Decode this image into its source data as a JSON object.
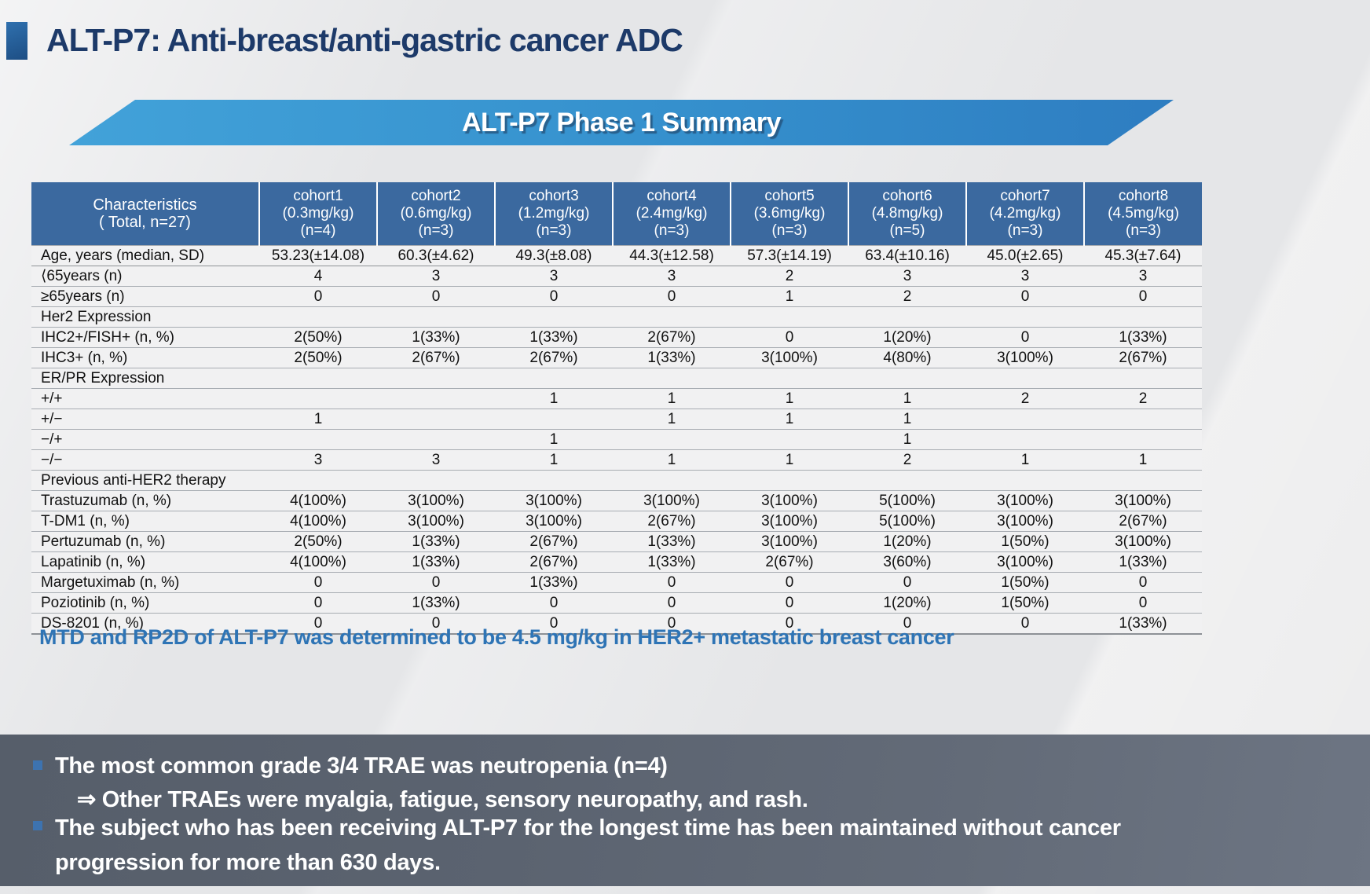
{
  "title": "ALT-P7: Anti-breast/anti-gastric cancer ADC",
  "banner": "ALT-P7 Phase 1 Summary",
  "table": {
    "header": {
      "characteristics": [
        "Characteristics",
        "( Total, n=27)"
      ],
      "cohorts": [
        {
          "name": "cohort1",
          "dose": "(0.3mg/kg)",
          "n": "(n=4)"
        },
        {
          "name": "cohort2",
          "dose": "(0.6mg/kg)",
          "n": "(n=3)"
        },
        {
          "name": "cohort3",
          "dose": "(1.2mg/kg)",
          "n": "(n=3)"
        },
        {
          "name": "cohort4",
          "dose": "(2.4mg/kg)",
          "n": "(n=3)"
        },
        {
          "name": "cohort5",
          "dose": "(3.6mg/kg)",
          "n": "(n=3)"
        },
        {
          "name": "cohort6",
          "dose": "(4.8mg/kg)",
          "n": "(n=5)"
        },
        {
          "name": "cohort7",
          "dose": "(4.2mg/kg)",
          "n": "(n=3)"
        },
        {
          "name": "cohort8",
          "dose": "(4.5mg/kg)",
          "n": "(n=3)"
        }
      ]
    },
    "rows": [
      {
        "type": "highlight",
        "label": "Age, years (median, SD)",
        "values": [
          "53.23(±14.08)",
          "60.3(±4.62)",
          "49.3(±8.08)",
          "44.3(±12.58)",
          "57.3(±14.19)",
          "63.4(±10.16)",
          "45.0(±2.65)",
          "45.3(±7.64)"
        ]
      },
      {
        "type": "data",
        "label": "⟨65years (n)",
        "values": [
          "4",
          "3",
          "3",
          "3",
          "2",
          "3",
          "3",
          "3"
        ]
      },
      {
        "type": "data",
        "label": "≥65years (n)",
        "values": [
          "0",
          "0",
          "0",
          "0",
          "1",
          "2",
          "0",
          "0"
        ]
      },
      {
        "type": "section",
        "label": "Her2 Expression"
      },
      {
        "type": "data",
        "label": "IHC2+/FISH+ (n, %)",
        "values": [
          "2(50%)",
          "1(33%)",
          "1(33%)",
          "2(67%)",
          "0",
          "1(20%)",
          "0",
          "1(33%)"
        ]
      },
      {
        "type": "data",
        "label": "IHC3+ (n, %)",
        "values": [
          "2(50%)",
          "2(67%)",
          "2(67%)",
          "1(33%)",
          "3(100%)",
          "4(80%)",
          "3(100%)",
          "2(67%)"
        ]
      },
      {
        "type": "section",
        "label": "ER/PR Expression"
      },
      {
        "type": "data",
        "label": "+/+",
        "values": [
          "",
          "",
          "1",
          "1",
          "1",
          "1",
          "2",
          "2"
        ]
      },
      {
        "type": "data",
        "label": "+/−",
        "values": [
          "1",
          "",
          "",
          "1",
          "1",
          "1",
          "",
          ""
        ]
      },
      {
        "type": "data",
        "label": "−/+",
        "values": [
          "",
          "",
          "1",
          "",
          "",
          "1",
          "",
          ""
        ]
      },
      {
        "type": "data",
        "label": "−/−",
        "values": [
          "3",
          "3",
          "1",
          "1",
          "1",
          "2",
          "1",
          "1"
        ]
      },
      {
        "type": "section",
        "label": "Previous anti-HER2 therapy"
      },
      {
        "type": "data",
        "label": "Trastuzumab (n, %)",
        "values": [
          "4(100%)",
          "3(100%)",
          "3(100%)",
          "3(100%)",
          "3(100%)",
          "5(100%)",
          "3(100%)",
          "3(100%)"
        ]
      },
      {
        "type": "data",
        "label": "T-DM1 (n, %)",
        "values": [
          "4(100%)",
          "3(100%)",
          "3(100%)",
          "2(67%)",
          "3(100%)",
          "5(100%)",
          "3(100%)",
          "2(67%)"
        ]
      },
      {
        "type": "data",
        "label": "Pertuzumab (n, %)",
        "values": [
          "2(50%)",
          "1(33%)",
          "2(67%)",
          "1(33%)",
          "3(100%)",
          "1(20%)",
          "1(50%)",
          "3(100%)"
        ]
      },
      {
        "type": "data",
        "label": "Lapatinib (n, %)",
        "values": [
          "4(100%)",
          "1(33%)",
          "2(67%)",
          "1(33%)",
          "2(67%)",
          "3(60%)",
          "3(100%)",
          "1(33%)"
        ]
      },
      {
        "type": "data",
        "label": "Margetuximab (n, %)",
        "values": [
          "0",
          "0",
          "1(33%)",
          "0",
          "0",
          "0",
          "1(50%)",
          "0"
        ]
      },
      {
        "type": "data",
        "label": "Poziotinib (n, %)",
        "values": [
          "0",
          "1(33%)",
          "0",
          "0",
          "0",
          "1(20%)",
          "1(50%)",
          "0"
        ]
      },
      {
        "type": "data",
        "label": "DS-8201 (n, %)",
        "values": [
          "0",
          "0",
          "0",
          "0",
          "0",
          "0",
          "0",
          "1(33%)"
        ]
      }
    ]
  },
  "mtd_note": "MTD and RP2D of ALT-P7 was determined to be 4.5 mg/kg in HER2+ metastatic breast cancer",
  "highlights": {
    "bullet1": "The most common grade 3/4 TRAE was neutropenia (n=4)",
    "bullet1_sub": "⇒ Other TRAEs were myalgia, fatigue, sensory neuropathy, and rash.",
    "bullet2": "The subject who has been receiving ALT-P7 for the longest time has been maintained without cancer progression for more than 630 days."
  },
  "colors": {
    "title_text": "#1d3a69",
    "accent_square": "#1d4e84",
    "banner_blue": "#3590cd",
    "table_header_blue": "#3b699f",
    "section_row_blue": "#dbe6f3",
    "highlight_row_blue": "#d8e4f1",
    "data_row_gray": "#f1f1f2",
    "mtd_text_blue": "#2e74b5",
    "footer_box_gray": "#5b6370",
    "bullet_marker_blue": "#3d73b0"
  }
}
